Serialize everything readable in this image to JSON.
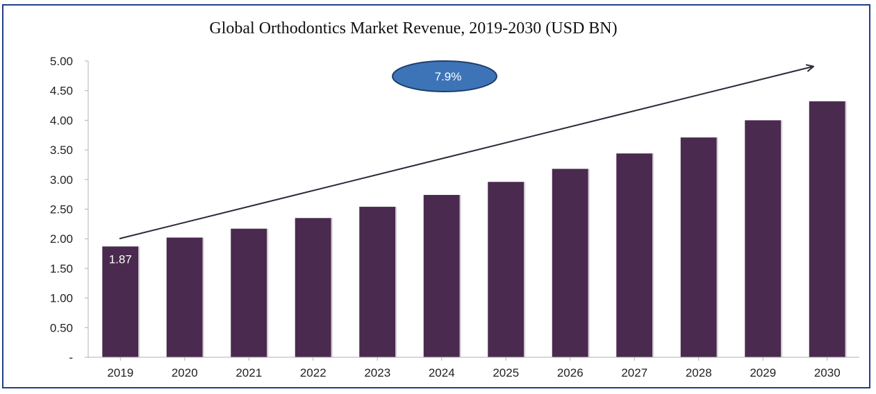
{
  "chart_data": {
    "type": "bar",
    "title": "Global Orthodontics Market Revenue, 2019-2030 (USD BN)",
    "categories": [
      "2019",
      "2020",
      "2021",
      "2022",
      "2023",
      "2024",
      "2025",
      "2026",
      "2027",
      "2028",
      "2029",
      "2030"
    ],
    "values": [
      1.87,
      2.02,
      2.17,
      2.35,
      2.54,
      2.74,
      2.96,
      3.18,
      3.44,
      3.71,
      4.0,
      4.32
    ],
    "ylim": [
      0,
      5
    ],
    "yticks": [
      "-",
      "0.50",
      "1.00",
      "1.50",
      "2.00",
      "2.50",
      "3.00",
      "3.50",
      "4.00",
      "4.50",
      "5.00"
    ],
    "data_labels": [
      {
        "index": 0,
        "text": "1.87"
      }
    ],
    "annotation": {
      "text": "7.9%"
    },
    "bar_color": "#4a2a4e",
    "grid": false,
    "legend": "none"
  }
}
